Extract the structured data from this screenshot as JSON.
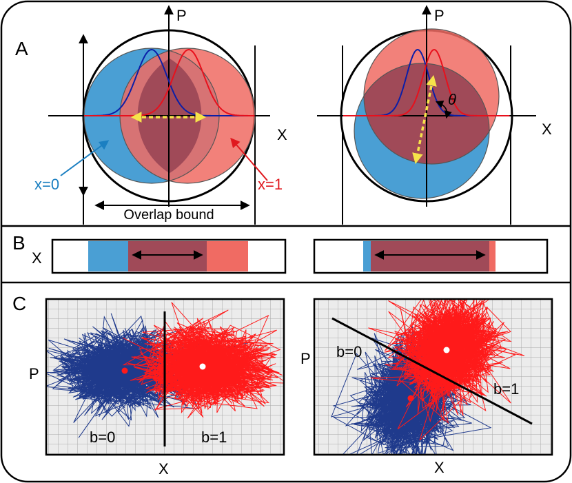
{
  "panels": {
    "a_label": "A",
    "b_label": "B",
    "c_label": "C"
  },
  "panel_a": {
    "left": {
      "p_axis": "P",
      "x_axis": "X",
      "blue_state": "x=0",
      "red_state": "x=1",
      "overlap_label": "Overlap bound"
    },
    "right": {
      "p_axis": "P",
      "x_axis": "X",
      "angle": "θ"
    }
  },
  "panel_b": {
    "x_axis": "X"
  },
  "panel_c": {
    "left": {
      "p_axis": "P",
      "x_axis": "X",
      "region_0": "b=0",
      "region_1": "b=1"
    },
    "right": {
      "p_axis": "P",
      "x_axis": "X",
      "region_0": "b=0",
      "region_1": "b=1"
    }
  },
  "colors": {
    "blue_fill": "#4a9fd4",
    "red_fill": "#f06b63",
    "overlap_fill": "#a04a58",
    "blue_curve": "#0a1ea8",
    "red_curve": "#e8101c",
    "blue_scatter": "#1f3a8c",
    "red_scatter": "#ff1a1a",
    "yellow_arrow": "#f6e34a",
    "state_blue_text": "#1b7fc1",
    "state_red_text": "#e0191f"
  }
}
